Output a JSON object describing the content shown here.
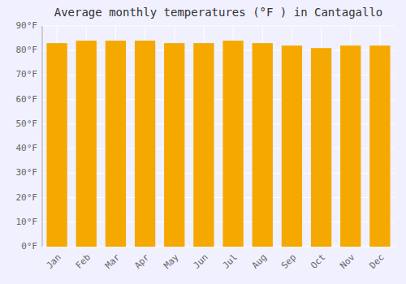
{
  "chart_data": {
    "type": "bar",
    "title": "Average monthly temperatures (°F ) in Cantagallo",
    "categories": [
      "Jan",
      "Feb",
      "Mar",
      "Apr",
      "May",
      "Jun",
      "Jul",
      "Aug",
      "Sep",
      "Oct",
      "Nov",
      "Dec"
    ],
    "values": [
      83,
      84,
      84,
      84,
      83,
      83,
      84,
      83,
      82,
      81,
      82,
      82
    ],
    "color": "#F5A800",
    "ylim": [
      0,
      90
    ],
    "yticks": [
      {
        "value": 0,
        "label": "0°F"
      },
      {
        "value": 10,
        "label": "10°F"
      },
      {
        "value": 20,
        "label": "20°F"
      },
      {
        "value": 30,
        "label": "30°F"
      },
      {
        "value": 40,
        "label": "40°F"
      },
      {
        "value": 50,
        "label": "50°F"
      },
      {
        "value": 60,
        "label": "60°F"
      },
      {
        "value": 70,
        "label": "70°F"
      },
      {
        "value": 80,
        "label": "80°F"
      },
      {
        "value": 90,
        "label": "90°F"
      }
    ],
    "grid": true
  }
}
